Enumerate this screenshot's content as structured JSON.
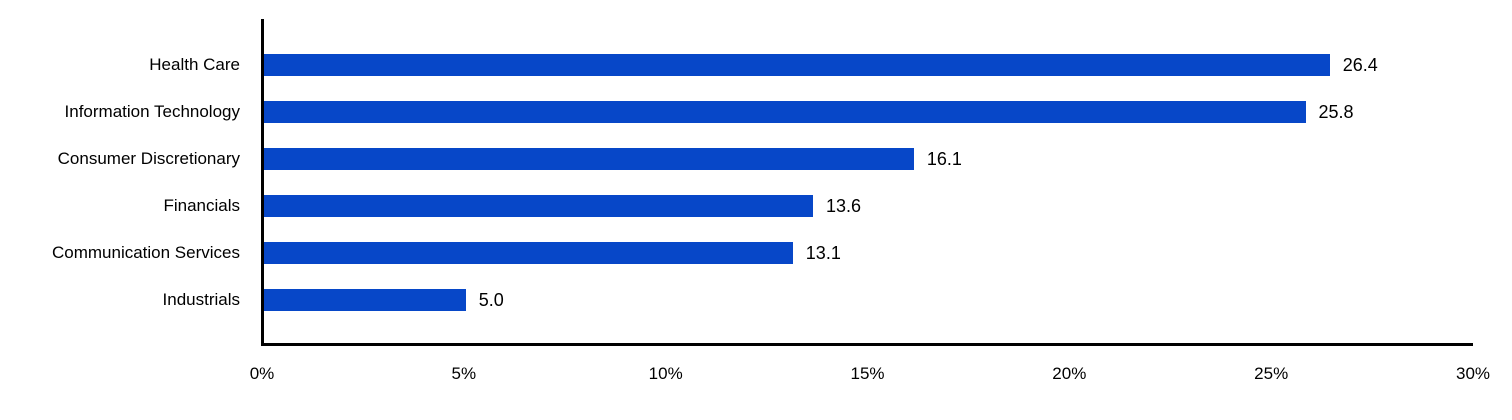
{
  "colors": {
    "bar": "#0747C8",
    "axis": "#000000",
    "text": "#000000",
    "background": "#ffffff"
  },
  "chart_data": {
    "type": "bar",
    "orientation": "horizontal",
    "title": "",
    "xlabel": "",
    "ylabel": "",
    "categories": [
      "Health Care",
      "Information Technology",
      "Consumer Discretionary",
      "Financials",
      "Communication Services",
      "Industrials"
    ],
    "values": [
      26.4,
      25.8,
      16.1,
      13.6,
      13.1,
      5.0
    ],
    "value_labels": [
      "26.4",
      "25.8",
      "16.1",
      "13.6",
      "13.1",
      "5.0"
    ],
    "x_ticks": [
      "0%",
      "5%",
      "10%",
      "15%",
      "20%",
      "25%",
      "30%"
    ],
    "x_tick_values": [
      0,
      5,
      10,
      15,
      20,
      25,
      30
    ],
    "xlim": [
      0,
      30
    ],
    "grid": "off",
    "legend": "none",
    "bar_color": "#0747C8"
  }
}
